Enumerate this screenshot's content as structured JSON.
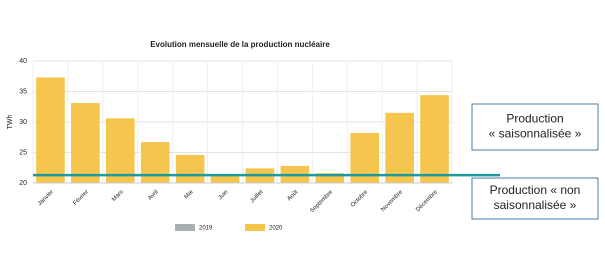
{
  "chart_data": {
    "type": "bar",
    "title": "Evolution mensuelle de la production nucléaire",
    "y_label": "TWh",
    "categories": [
      "Janvier",
      "Février",
      "Mars",
      "Avril",
      "Mai",
      "Juin",
      "Juillet",
      "Août",
      "Septembre",
      "Octobre",
      "Novembre",
      "Décembre"
    ],
    "series": [
      {
        "name": "2019",
        "color": "#a7b0b3",
        "values": [
          null,
          null,
          null,
          null,
          null,
          null,
          null,
          null,
          null,
          null,
          null,
          null
        ]
      },
      {
        "name": "2020",
        "color": "#f6c54d",
        "values": [
          37.3,
          33.1,
          30.6,
          26.7,
          24.6,
          21.2,
          22.4,
          22.8,
          21.6,
          28.2,
          31.5,
          34.4
        ]
      }
    ],
    "ylim": [
      20,
      40
    ],
    "yticks": [
      20,
      25,
      30,
      35,
      40
    ],
    "grid": true,
    "reference_line": 21.3,
    "reference_color": "#1b9aa0",
    "annotations": [
      {
        "lines": [
          "Production",
          "« saisonnalisée »"
        ]
      },
      {
        "lines": [
          "Production « non",
          "saisonnalisée »"
        ]
      }
    ]
  }
}
